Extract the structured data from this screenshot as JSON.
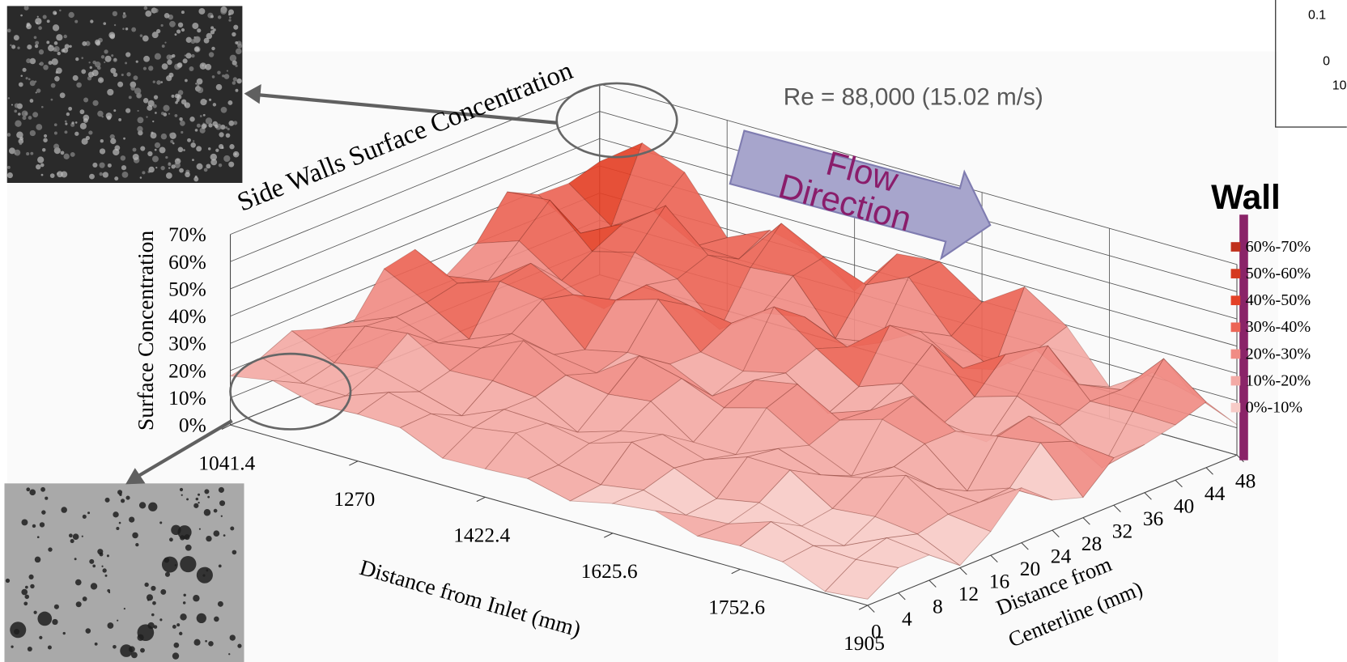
{
  "title": "Side Walls Surface Concentration",
  "annotation": "Re = 88,000 (15.02 m/s)",
  "flow_label": [
    "Flow",
    "Direction"
  ],
  "inset": {
    "ticks": [
      "0.1",
      "0",
      "10"
    ]
  },
  "chart_data": {
    "type": "surface3d",
    "z_label": "Surface Concentration",
    "x_label": "Distance from Inlet (mm)",
    "y_label": [
      "Distance from",
      "Centerline (mm)"
    ],
    "zlim": [
      0,
      70
    ],
    "zticks": [
      {
        "value": 0,
        "label": "0%"
      },
      {
        "value": 10,
        "label": "10%"
      },
      {
        "value": 20,
        "label": "20%"
      },
      {
        "value": 30,
        "label": "30%"
      },
      {
        "value": 40,
        "label": "40%"
      },
      {
        "value": 50,
        "label": "50%"
      },
      {
        "value": 60,
        "label": "60%"
      },
      {
        "value": 70,
        "label": "70%"
      }
    ],
    "categories": [
      "1041.4",
      "1270",
      "1422.4",
      "1625.6",
      "1752.6",
      "1905"
    ],
    "ylim": [
      0,
      48
    ],
    "yticks": [
      0,
      4,
      8,
      12,
      16,
      20,
      24,
      28,
      32,
      36,
      40,
      44,
      48
    ],
    "legend": {
      "title": "Wall",
      "items": [
        {
          "label": "60%-70%",
          "color": "#c0301c"
        },
        {
          "label": "50%-60%",
          "color": "#d5391f"
        },
        {
          "label": "40%-50%",
          "color": "#e44127"
        },
        {
          "label": "30%-40%",
          "color": "#ec6556"
        },
        {
          "label": "20%-30%",
          "color": "#f08c84"
        },
        {
          "label": "10%-20%",
          "color": "#f3aaa5"
        },
        {
          "label": "0%-10%",
          "color": "#f7cbc7"
        }
      ]
    }
  }
}
